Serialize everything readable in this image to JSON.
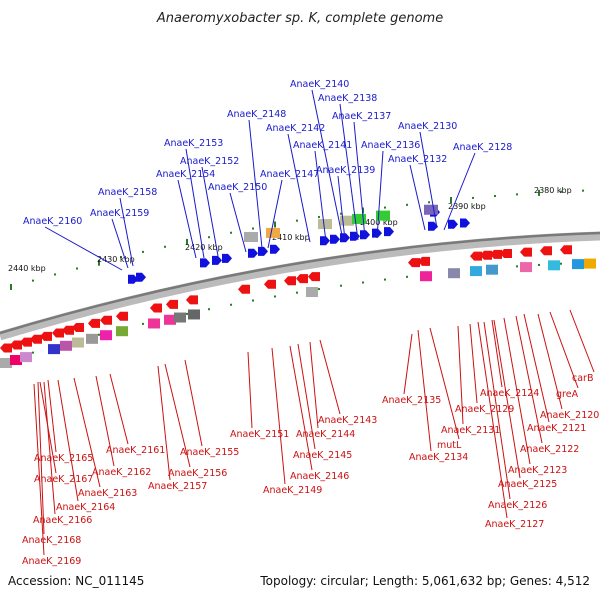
{
  "title": "Anaeromyxobacter sp. K, complete genome",
  "footer": {
    "accession": "Accession: NC_011145",
    "topology": "Topology: circular; Length: 5,061,632 bp; Genes: 4,512"
  },
  "ticks": [
    "2380 kbp",
    "2390 kbp",
    "2400 kbp",
    "2410 kbp",
    "2420 kbp",
    "2430 kbp",
    "2440 kbp"
  ],
  "genes_plus": [
    "AnaeK_2128",
    "AnaeK_2130",
    "AnaeK_2132",
    "AnaeK_2136",
    "AnaeK_2137",
    "AnaeK_2138",
    "AnaeK_2139",
    "AnaeK_2140",
    "AnaeK_2141",
    "AnaeK_2142",
    "AnaeK_2147",
    "AnaeK_2148",
    "AnaeK_2150",
    "AnaeK_2152",
    "AnaeK_2153",
    "AnaeK_2154",
    "AnaeK_2158",
    "AnaeK_2159",
    "AnaeK_2160"
  ],
  "genes_minus": [
    "carB",
    "greA",
    "AnaeK_2120",
    "AnaeK_2121",
    "AnaeK_2122",
    "AnaeK_2123",
    "AnaeK_2124",
    "AnaeK_2125",
    "AnaeK_2126",
    "AnaeK_2127",
    "AnaeK_2129",
    "AnaeK_2131",
    "mutL",
    "AnaeK_2134",
    "AnaeK_2135",
    "AnaeK_2143",
    "AnaeK_2144",
    "AnaeK_2145",
    "AnaeK_2146",
    "AnaeK_2149",
    "AnaeK_2151",
    "AnaeK_2155",
    "AnaeK_2156",
    "AnaeK_2157",
    "AnaeK_2161",
    "AnaeK_2162",
    "AnaeK_2163",
    "AnaeK_2164",
    "AnaeK_2165",
    "AnaeK_2166",
    "AnaeK_2167",
    "AnaeK_2168",
    "AnaeK_2169"
  ],
  "colors": {
    "plus": "#1111dd",
    "minus": "#ee1111",
    "backbone": "#8a8a8a",
    "label_plus": "#1a1acc",
    "label_minus": "#cc1111",
    "tick": "#2a7a2a"
  }
}
